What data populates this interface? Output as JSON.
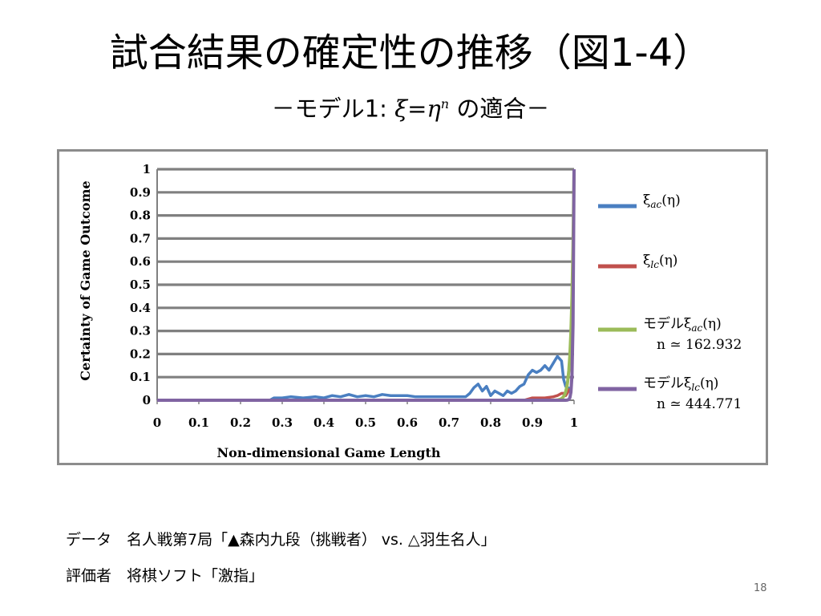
{
  "slide": {
    "title": "試合結果の確定性の推移（図1-4）",
    "subtitle_prefix": "－モデル1:",
    "subtitle_xi": "ξ",
    "subtitle_eq": "=",
    "subtitle_eta": "η",
    "subtitle_exp": "n",
    "subtitle_suffix": " の適合－",
    "note_line1": "データ　名人戦第7局「▲森内九段（挑戦者） vs. △羽生名人」",
    "note_line2": "評価者　将棋ソフト「激指」",
    "page_number": "18"
  },
  "colors": {
    "xi_ac": "#4a7fc1",
    "xi_lc": "#c0504d",
    "model_ac": "#9bbb59",
    "model_lc": "#8064a2",
    "grid": "#808080",
    "frame": "#8c8c8c"
  },
  "chart_data": {
    "type": "line",
    "title": "",
    "xlabel": "Non-dimensional Game Length",
    "ylabel": "Certainty of Game Outcome",
    "xlim": [
      0,
      1
    ],
    "ylim": [
      0,
      1
    ],
    "xticks": [
      "0",
      "0.1",
      "0.2",
      "0.3",
      "0.4",
      "0.5",
      "0.6",
      "0.7",
      "0.8",
      "0.9",
      "1"
    ],
    "yticks": [
      "0",
      "0.1",
      "0.2",
      "0.3",
      "0.4",
      "0.5",
      "0.6",
      "0.7",
      "0.8",
      "0.9",
      "1"
    ],
    "grid": true,
    "legend_position": "right",
    "series": [
      {
        "name": "ξac(η)",
        "name_main": "ξ",
        "name_sub": "ac",
        "name_tail": "(η)",
        "color": "#4a7fc1",
        "x": [
          0,
          0.27,
          0.28,
          0.3,
          0.32,
          0.35,
          0.38,
          0.4,
          0.42,
          0.44,
          0.46,
          0.48,
          0.5,
          0.52,
          0.54,
          0.56,
          0.58,
          0.6,
          0.62,
          0.65,
          0.7,
          0.74,
          0.75,
          0.76,
          0.77,
          0.78,
          0.79,
          0.8,
          0.81,
          0.82,
          0.83,
          0.84,
          0.85,
          0.86,
          0.87,
          0.88,
          0.89,
          0.9,
          0.91,
          0.92,
          0.93,
          0.94,
          0.95,
          0.96,
          0.97,
          0.975,
          0.98,
          0.99
        ],
        "y": [
          0,
          0,
          0.01,
          0.01,
          0.015,
          0.01,
          0.015,
          0.01,
          0.02,
          0.015,
          0.025,
          0.015,
          0.02,
          0.015,
          0.025,
          0.02,
          0.02,
          0.02,
          0.015,
          0.015,
          0.015,
          0.015,
          0.03,
          0.055,
          0.07,
          0.04,
          0.06,
          0.02,
          0.04,
          0.03,
          0.02,
          0.04,
          0.03,
          0.04,
          0.06,
          0.07,
          0.11,
          0.13,
          0.12,
          0.13,
          0.15,
          0.13,
          0.16,
          0.19,
          0.17,
          0.09,
          0.06,
          0.05
        ]
      },
      {
        "name": "ξlc(η)",
        "name_main": "ξ",
        "name_sub": "lc",
        "name_tail": "(η)",
        "color": "#c0504d",
        "x": [
          0,
          0.88,
          0.9,
          0.93,
          0.95,
          0.96,
          0.97,
          0.975,
          0.98,
          0.99
        ],
        "y": [
          0,
          0,
          0.01,
          0.01,
          0.015,
          0.02,
          0.03,
          0.03,
          0.02,
          0.05
        ]
      },
      {
        "name": "モデルξac(η)",
        "name_prefix": "モデル",
        "name_main": "ξ",
        "name_sub": "ac",
        "name_tail": "(η)",
        "annotation": "n ≃ 162.932",
        "color": "#9bbb59",
        "n": 162.932
      },
      {
        "name": "モデルξlc(η)",
        "name_prefix": "モデル",
        "name_main": "ξ",
        "name_sub": "lc",
        "name_tail": "(η)",
        "annotation": "n ≃ 444.771",
        "color": "#8064a2",
        "n": 444.771
      }
    ]
  }
}
